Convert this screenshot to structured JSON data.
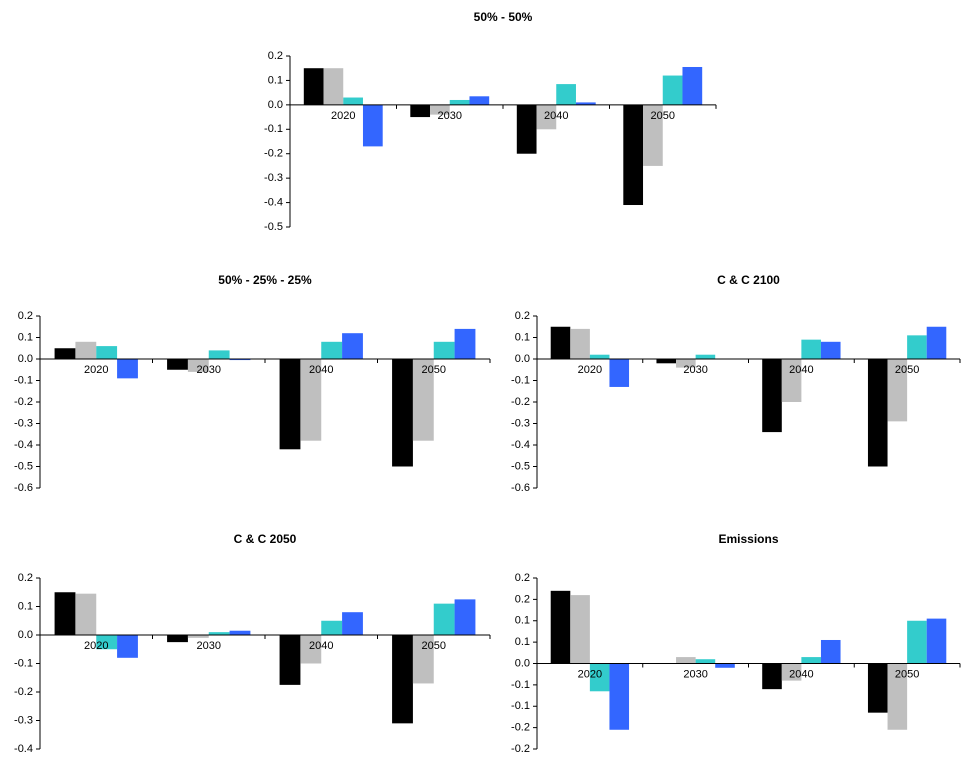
{
  "chart_data": [
    {
      "type": "bar",
      "title": "50% - 50%",
      "categories": [
        "2020",
        "2030",
        "2040",
        "2050"
      ],
      "series": [
        {
          "color": "#000000",
          "values": [
            0.15,
            -0.05,
            -0.2,
            -0.41
          ]
        },
        {
          "color": "#bfbfbf",
          "values": [
            0.15,
            -0.04,
            -0.1,
            -0.25
          ]
        },
        {
          "color": "#33cccc",
          "values": [
            0.03,
            0.02,
            0.085,
            0.12
          ]
        },
        {
          "color": "#3366ff",
          "values": [
            -0.17,
            0.035,
            0.01,
            0.155
          ]
        }
      ],
      "ylim": [
        -0.5,
        0.2
      ],
      "yticks": [
        0.2,
        0.1,
        {
          "value": 0,
          "label": "0.0"
        },
        -0.1,
        -0.2,
        -0.3,
        -0.4,
        -0.5
      ]
    },
    {
      "type": "bar",
      "title": "50% - 25% - 25%",
      "categories": [
        "2020",
        "2030",
        "2040",
        "2050"
      ],
      "series": [
        {
          "color": "#000000",
          "values": [
            0.05,
            -0.05,
            -0.42,
            -0.5
          ]
        },
        {
          "color": "#bfbfbf",
          "values": [
            0.08,
            -0.06,
            -0.38,
            -0.38
          ]
        },
        {
          "color": "#33cccc",
          "values": [
            0.06,
            0.04,
            0.08,
            0.08
          ]
        },
        {
          "color": "#3366ff",
          "values": [
            -0.09,
            -0.005,
            0.12,
            0.14
          ]
        }
      ],
      "ylim": [
        -0.6,
        0.2
      ],
      "yticks": [
        0.2,
        0.1,
        {
          "value": 0,
          "label": "0.0"
        },
        -0.1,
        -0.2,
        -0.3,
        -0.4,
        -0.5,
        -0.6
      ]
    },
    {
      "type": "bar",
      "title": "C & C 2100",
      "categories": [
        "2020",
        "2030",
        "2040",
        "2050"
      ],
      "series": [
        {
          "color": "#000000",
          "values": [
            0.15,
            -0.02,
            -0.34,
            -0.5
          ]
        },
        {
          "color": "#bfbfbf",
          "values": [
            0.14,
            -0.04,
            -0.2,
            -0.29
          ]
        },
        {
          "color": "#33cccc",
          "values": [
            0.02,
            0.02,
            0.09,
            0.11
          ]
        },
        {
          "color": "#3366ff",
          "values": [
            -0.13,
            0,
            0.08,
            0.15
          ]
        }
      ],
      "ylim": [
        -0.6,
        0.2
      ],
      "yticks": [
        0.2,
        0.1,
        {
          "value": 0,
          "label": "0.0"
        },
        -0.1,
        -0.2,
        -0.3,
        -0.4,
        -0.5,
        -0.6
      ]
    },
    {
      "type": "bar",
      "title": "C & C 2050",
      "categories": [
        "2020",
        "2030",
        "2040",
        "2050"
      ],
      "series": [
        {
          "color": "#000000",
          "values": [
            0.15,
            -0.025,
            -0.175,
            -0.31
          ]
        },
        {
          "color": "#bfbfbf",
          "values": [
            0.145,
            -0.01,
            -0.1,
            -0.17
          ]
        },
        {
          "color": "#33cccc",
          "values": [
            -0.05,
            0.01,
            0.05,
            0.11
          ]
        },
        {
          "color": "#3366ff",
          "values": [
            -0.08,
            0.015,
            0.08,
            0.125
          ]
        }
      ],
      "ylim": [
        -0.4,
        0.2
      ],
      "yticks": [
        0.2,
        0.1,
        {
          "value": 0,
          "label": "0.0"
        },
        -0.1,
        -0.2,
        -0.3,
        -0.4
      ]
    },
    {
      "type": "bar",
      "title": "Emissions",
      "categories": [
        "2020",
        "2030",
        "2040",
        "2050"
      ],
      "series": [
        {
          "color": "#000000",
          "values": [
            0.17,
            0,
            -0.06,
            -0.115
          ]
        },
        {
          "color": "#bfbfbf",
          "values": [
            0.16,
            0.015,
            -0.04,
            -0.155
          ]
        },
        {
          "color": "#33cccc",
          "values": [
            -0.065,
            0.01,
            0.015,
            0.1
          ]
        },
        {
          "color": "#3366ff",
          "values": [
            -0.155,
            -0.01,
            0.055,
            0.105
          ]
        }
      ],
      "ylim": [
        -0.2,
        0.2
      ],
      "yticks": [
        {
          "value": 0.2,
          "label": "0.2"
        },
        {
          "value": 0.15,
          "label": "0.2"
        },
        {
          "value": 0.1,
          "label": "0.1"
        },
        {
          "value": 0.05,
          "label": "0.1"
        },
        {
          "value": 0,
          "label": "0.0"
        },
        {
          "value": -0.05,
          "label": "-0.1"
        },
        {
          "value": -0.1,
          "label": "-0.1"
        },
        {
          "value": -0.15,
          "label": "-0.2"
        },
        {
          "value": -0.2,
          "label": "-0.2"
        }
      ]
    }
  ]
}
